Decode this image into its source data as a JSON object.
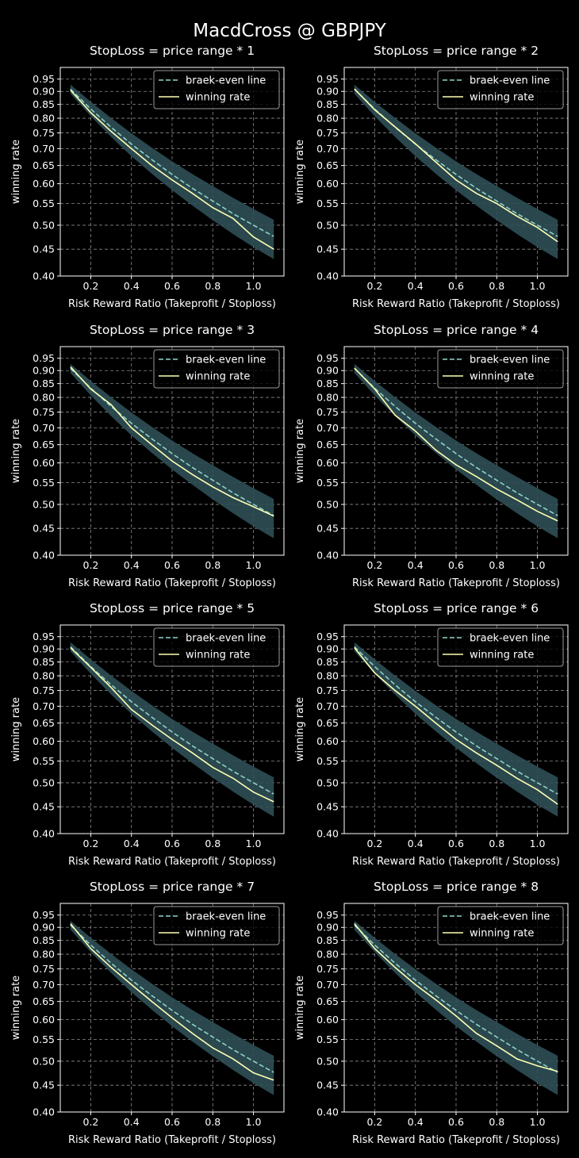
{
  "suptitle": "MacdCross @ GBPJPY",
  "colors": {
    "background": "#000000",
    "break_even": "#8dd3c7",
    "winning": "#feffb3",
    "band": "#2f4f56",
    "grid": "#8a8a8a",
    "text": "#ffffff"
  },
  "chart_data": [
    {
      "type": "line",
      "title": "StopLoss = price range * 1",
      "xlabel": "Risk Reward Ratio (Takeprofit / Stoploss)",
      "ylabel": "winning rate",
      "xlim": [
        0.05,
        1.15
      ],
      "ylim": [
        0.4,
        1.0
      ],
      "yscale": "log",
      "grid": true,
      "legend": "upper right",
      "xticks": [
        0.2,
        0.4,
        0.6,
        0.8,
        1.0
      ],
      "xtick_labels": [
        "0.2",
        "0.4",
        "0.6",
        "0.8",
        "1.0"
      ],
      "yticks": [
        0.4,
        0.45,
        0.5,
        0.55,
        0.6,
        0.65,
        0.7,
        0.75,
        0.8,
        0.85,
        0.9,
        0.95
      ],
      "ytick_labels": [
        "0.40",
        "0.45",
        "0.50",
        "0.55",
        "0.60",
        "0.65",
        "0.70",
        "0.75",
        "0.80",
        "0.85",
        "0.90",
        "0.95"
      ],
      "x": [
        0.1,
        0.2,
        0.3,
        0.4,
        0.5,
        0.6,
        0.7,
        0.8,
        0.9,
        1.0,
        1.1
      ],
      "band": {
        "lower": [
          0.891,
          0.807,
          0.737,
          0.677,
          0.627,
          0.583,
          0.545,
          0.511,
          0.481,
          0.454,
          0.431
        ],
        "upper": [
          0.927,
          0.86,
          0.801,
          0.749,
          0.703,
          0.662,
          0.626,
          0.594,
          0.564,
          0.537,
          0.512
        ]
      },
      "series": [
        {
          "name": "braek-even line",
          "style": "dashed",
          "values": [
            0.909,
            0.833,
            0.769,
            0.714,
            0.667,
            0.625,
            0.588,
            0.556,
            0.526,
            0.5,
            0.476
          ]
        },
        {
          "name": "winning rate",
          "style": "solid",
          "values": [
            0.905,
            0.82,
            0.755,
            0.7,
            0.65,
            0.61,
            0.575,
            0.54,
            0.515,
            0.475,
            0.45
          ]
        }
      ]
    },
    {
      "type": "line",
      "title": "StopLoss = price range * 2",
      "xlabel": "Risk Reward Ratio (Takeprofit / Stoploss)",
      "ylabel": "winning rate",
      "xlim": [
        0.05,
        1.15
      ],
      "ylim": [
        0.4,
        1.0
      ],
      "yscale": "log",
      "grid": true,
      "legend": "upper right",
      "xticks": [
        0.2,
        0.4,
        0.6,
        0.8,
        1.0
      ],
      "xtick_labels": [
        "0.2",
        "0.4",
        "0.6",
        "0.8",
        "1.0"
      ],
      "yticks": [
        0.4,
        0.45,
        0.5,
        0.55,
        0.6,
        0.65,
        0.7,
        0.75,
        0.8,
        0.85,
        0.9,
        0.95
      ],
      "ytick_labels": [
        "0.40",
        "0.45",
        "0.50",
        "0.55",
        "0.60",
        "0.65",
        "0.70",
        "0.75",
        "0.80",
        "0.85",
        "0.90",
        "0.95"
      ],
      "x": [
        0.1,
        0.2,
        0.3,
        0.4,
        0.5,
        0.6,
        0.7,
        0.8,
        0.9,
        1.0,
        1.1
      ],
      "band": {
        "lower": [
          0.891,
          0.807,
          0.737,
          0.677,
          0.627,
          0.583,
          0.545,
          0.511,
          0.481,
          0.454,
          0.431
        ],
        "upper": [
          0.927,
          0.86,
          0.801,
          0.749,
          0.703,
          0.662,
          0.626,
          0.594,
          0.564,
          0.537,
          0.512
        ]
      },
      "series": [
        {
          "name": "braek-even line",
          "style": "dashed",
          "values": [
            0.909,
            0.833,
            0.769,
            0.714,
            0.667,
            0.625,
            0.588,
            0.556,
            0.526,
            0.5,
            0.476
          ]
        },
        {
          "name": "winning rate",
          "style": "solid",
          "values": [
            0.91,
            0.83,
            0.77,
            0.715,
            0.66,
            0.61,
            0.575,
            0.55,
            0.52,
            0.495,
            0.465
          ]
        }
      ]
    },
    {
      "type": "line",
      "title": "StopLoss = price range * 3",
      "xlabel": "Risk Reward Ratio (Takeprofit / Stoploss)",
      "ylabel": "winning rate",
      "xlim": [
        0.05,
        1.15
      ],
      "ylim": [
        0.4,
        1.0
      ],
      "yscale": "log",
      "grid": true,
      "legend": "upper right",
      "xticks": [
        0.2,
        0.4,
        0.6,
        0.8,
        1.0
      ],
      "xtick_labels": [
        "0.2",
        "0.4",
        "0.6",
        "0.8",
        "1.0"
      ],
      "yticks": [
        0.4,
        0.45,
        0.5,
        0.55,
        0.6,
        0.65,
        0.7,
        0.75,
        0.8,
        0.85,
        0.9,
        0.95
      ],
      "ytick_labels": [
        "0.40",
        "0.45",
        "0.50",
        "0.55",
        "0.60",
        "0.65",
        "0.70",
        "0.75",
        "0.80",
        "0.85",
        "0.90",
        "0.95"
      ],
      "x": [
        0.1,
        0.2,
        0.3,
        0.4,
        0.5,
        0.6,
        0.7,
        0.8,
        0.9,
        1.0,
        1.1
      ],
      "band": {
        "lower": [
          0.891,
          0.807,
          0.737,
          0.677,
          0.627,
          0.583,
          0.545,
          0.511,
          0.481,
          0.454,
          0.431
        ],
        "upper": [
          0.927,
          0.86,
          0.801,
          0.749,
          0.703,
          0.662,
          0.626,
          0.594,
          0.564,
          0.537,
          0.512
        ]
      },
      "series": [
        {
          "name": "braek-even line",
          "style": "dashed",
          "values": [
            0.909,
            0.833,
            0.769,
            0.714,
            0.667,
            0.625,
            0.588,
            0.556,
            0.526,
            0.5,
            0.476
          ]
        },
        {
          "name": "winning rate",
          "style": "solid",
          "values": [
            0.915,
            0.83,
            0.775,
            0.7,
            0.65,
            0.605,
            0.57,
            0.54,
            0.515,
            0.495,
            0.475
          ]
        }
      ]
    },
    {
      "type": "line",
      "title": "StopLoss = price range * 4",
      "xlabel": "Risk Reward Ratio (Takeprofit / Stoploss)",
      "ylabel": "winning rate",
      "xlim": [
        0.05,
        1.15
      ],
      "ylim": [
        0.4,
        1.0
      ],
      "yscale": "log",
      "grid": true,
      "legend": "upper right",
      "xticks": [
        0.2,
        0.4,
        0.6,
        0.8,
        1.0
      ],
      "xtick_labels": [
        "0.2",
        "0.4",
        "0.6",
        "0.8",
        "1.0"
      ],
      "yticks": [
        0.4,
        0.45,
        0.5,
        0.55,
        0.6,
        0.65,
        0.7,
        0.75,
        0.8,
        0.85,
        0.9,
        0.95
      ],
      "ytick_labels": [
        "0.40",
        "0.45",
        "0.50",
        "0.55",
        "0.60",
        "0.65",
        "0.70",
        "0.75",
        "0.80",
        "0.85",
        "0.90",
        "0.95"
      ],
      "x": [
        0.1,
        0.2,
        0.3,
        0.4,
        0.5,
        0.6,
        0.7,
        0.8,
        0.9,
        1.0,
        1.1
      ],
      "band": {
        "lower": [
          0.891,
          0.807,
          0.737,
          0.677,
          0.627,
          0.583,
          0.545,
          0.511,
          0.481,
          0.454,
          0.431
        ],
        "upper": [
          0.927,
          0.86,
          0.801,
          0.749,
          0.703,
          0.662,
          0.626,
          0.594,
          0.564,
          0.537,
          0.512
        ]
      },
      "series": [
        {
          "name": "braek-even line",
          "style": "dashed",
          "values": [
            0.909,
            0.833,
            0.769,
            0.714,
            0.667,
            0.625,
            0.588,
            0.556,
            0.526,
            0.5,
            0.476
          ]
        },
        {
          "name": "winning rate",
          "style": "solid",
          "values": [
            0.91,
            0.83,
            0.74,
            0.69,
            0.635,
            0.595,
            0.565,
            0.535,
            0.51,
            0.485,
            0.465
          ]
        }
      ]
    },
    {
      "type": "line",
      "title": "StopLoss = price range * 5",
      "xlabel": "Risk Reward Ratio (Takeprofit / Stoploss)",
      "ylabel": "winning rate",
      "xlim": [
        0.05,
        1.15
      ],
      "ylim": [
        0.4,
        1.0
      ],
      "yscale": "log",
      "grid": true,
      "legend": "upper right",
      "xticks": [
        0.2,
        0.4,
        0.6,
        0.8,
        1.0
      ],
      "xtick_labels": [
        "0.2",
        "0.4",
        "0.6",
        "0.8",
        "1.0"
      ],
      "yticks": [
        0.4,
        0.45,
        0.5,
        0.55,
        0.6,
        0.65,
        0.7,
        0.75,
        0.8,
        0.85,
        0.9,
        0.95
      ],
      "ytick_labels": [
        "0.40",
        "0.45",
        "0.50",
        "0.55",
        "0.60",
        "0.65",
        "0.70",
        "0.75",
        "0.80",
        "0.85",
        "0.90",
        "0.95"
      ],
      "x": [
        0.1,
        0.2,
        0.3,
        0.4,
        0.5,
        0.6,
        0.7,
        0.8,
        0.9,
        1.0,
        1.1
      ],
      "band": {
        "lower": [
          0.891,
          0.807,
          0.737,
          0.677,
          0.627,
          0.583,
          0.545,
          0.511,
          0.481,
          0.454,
          0.431
        ],
        "upper": [
          0.927,
          0.86,
          0.801,
          0.749,
          0.703,
          0.662,
          0.626,
          0.594,
          0.564,
          0.537,
          0.512
        ]
      },
      "series": [
        {
          "name": "braek-even line",
          "style": "dashed",
          "values": [
            0.909,
            0.833,
            0.769,
            0.714,
            0.667,
            0.625,
            0.588,
            0.556,
            0.526,
            0.5,
            0.476
          ]
        },
        {
          "name": "winning rate",
          "style": "solid",
          "values": [
            0.905,
            0.83,
            0.76,
            0.69,
            0.645,
            0.605,
            0.57,
            0.535,
            0.51,
            0.48,
            0.46
          ]
        }
      ]
    },
    {
      "type": "line",
      "title": "StopLoss = price range * 6",
      "xlabel": "Risk Reward Ratio (Takeprofit / Stoploss)",
      "ylabel": "winning rate",
      "xlim": [
        0.05,
        1.15
      ],
      "ylim": [
        0.4,
        1.0
      ],
      "yscale": "log",
      "grid": true,
      "legend": "upper right",
      "xticks": [
        0.2,
        0.4,
        0.6,
        0.8,
        1.0
      ],
      "xtick_labels": [
        "0.2",
        "0.4",
        "0.6",
        "0.8",
        "1.0"
      ],
      "yticks": [
        0.4,
        0.45,
        0.5,
        0.55,
        0.6,
        0.65,
        0.7,
        0.75,
        0.8,
        0.85,
        0.9,
        0.95
      ],
      "ytick_labels": [
        "0.40",
        "0.45",
        "0.50",
        "0.55",
        "0.60",
        "0.65",
        "0.70",
        "0.75",
        "0.80",
        "0.85",
        "0.90",
        "0.95"
      ],
      "x": [
        0.1,
        0.2,
        0.3,
        0.4,
        0.5,
        0.6,
        0.7,
        0.8,
        0.9,
        1.0,
        1.1
      ],
      "band": {
        "lower": [
          0.891,
          0.807,
          0.737,
          0.677,
          0.627,
          0.583,
          0.545,
          0.511,
          0.481,
          0.454,
          0.431
        ],
        "upper": [
          0.927,
          0.86,
          0.801,
          0.749,
          0.703,
          0.662,
          0.626,
          0.594,
          0.564,
          0.537,
          0.512
        ]
      },
      "series": [
        {
          "name": "braek-even line",
          "style": "dashed",
          "values": [
            0.909,
            0.833,
            0.769,
            0.714,
            0.667,
            0.625,
            0.588,
            0.556,
            0.526,
            0.5,
            0.476
          ]
        },
        {
          "name": "winning rate",
          "style": "solid",
          "values": [
            0.905,
            0.81,
            0.75,
            0.7,
            0.65,
            0.605,
            0.57,
            0.54,
            0.51,
            0.485,
            0.455
          ]
        }
      ]
    },
    {
      "type": "line",
      "title": "StopLoss = price range * 7",
      "xlabel": "Risk Reward Ratio (Takeprofit / Stoploss)",
      "ylabel": "winning rate",
      "xlim": [
        0.05,
        1.15
      ],
      "ylim": [
        0.4,
        1.0
      ],
      "yscale": "log",
      "grid": true,
      "legend": "upper right",
      "xticks": [
        0.2,
        0.4,
        0.6,
        0.8,
        1.0
      ],
      "xtick_labels": [
        "0.2",
        "0.4",
        "0.6",
        "0.8",
        "1.0"
      ],
      "yticks": [
        0.4,
        0.45,
        0.5,
        0.55,
        0.6,
        0.65,
        0.7,
        0.75,
        0.8,
        0.85,
        0.9,
        0.95
      ],
      "ytick_labels": [
        "0.40",
        "0.45",
        "0.50",
        "0.55",
        "0.60",
        "0.65",
        "0.70",
        "0.75",
        "0.80",
        "0.85",
        "0.90",
        "0.95"
      ],
      "x": [
        0.1,
        0.2,
        0.3,
        0.4,
        0.5,
        0.6,
        0.7,
        0.8,
        0.9,
        1.0,
        1.1
      ],
      "band": {
        "lower": [
          0.891,
          0.807,
          0.737,
          0.677,
          0.627,
          0.583,
          0.545,
          0.511,
          0.481,
          0.454,
          0.431
        ],
        "upper": [
          0.927,
          0.86,
          0.801,
          0.749,
          0.703,
          0.662,
          0.626,
          0.594,
          0.564,
          0.537,
          0.512
        ]
      },
      "series": [
        {
          "name": "braek-even line",
          "style": "dashed",
          "values": [
            0.909,
            0.833,
            0.769,
            0.714,
            0.667,
            0.625,
            0.588,
            0.556,
            0.526,
            0.5,
            0.476
          ]
        },
        {
          "name": "winning rate",
          "style": "solid",
          "values": [
            0.915,
            0.82,
            0.755,
            0.7,
            0.65,
            0.605,
            0.565,
            0.53,
            0.505,
            0.475,
            0.46
          ]
        }
      ]
    },
    {
      "type": "line",
      "title": "StopLoss = price range * 8",
      "xlabel": "Risk Reward Ratio (Takeprofit / Stoploss)",
      "ylabel": "winning rate",
      "xlim": [
        0.05,
        1.15
      ],
      "ylim": [
        0.4,
        1.0
      ],
      "yscale": "log",
      "grid": true,
      "legend": "upper right",
      "xticks": [
        0.2,
        0.4,
        0.6,
        0.8,
        1.0
      ],
      "xtick_labels": [
        "0.2",
        "0.4",
        "0.6",
        "0.8",
        "1.0"
      ],
      "yticks": [
        0.4,
        0.45,
        0.5,
        0.55,
        0.6,
        0.65,
        0.7,
        0.75,
        0.8,
        0.85,
        0.9,
        0.95
      ],
      "ytick_labels": [
        "0.40",
        "0.45",
        "0.50",
        "0.55",
        "0.60",
        "0.65",
        "0.70",
        "0.75",
        "0.80",
        "0.85",
        "0.90",
        "0.95"
      ],
      "x": [
        0.1,
        0.2,
        0.3,
        0.4,
        0.5,
        0.6,
        0.7,
        0.8,
        0.9,
        1.0,
        1.1
      ],
      "band": {
        "lower": [
          0.891,
          0.807,
          0.737,
          0.677,
          0.627,
          0.583,
          0.545,
          0.511,
          0.481,
          0.454,
          0.431
        ],
        "upper": [
          0.927,
          0.86,
          0.801,
          0.749,
          0.703,
          0.662,
          0.626,
          0.594,
          0.564,
          0.537,
          0.512
        ]
      },
      "series": [
        {
          "name": "braek-even line",
          "style": "dashed",
          "values": [
            0.909,
            0.833,
            0.769,
            0.714,
            0.667,
            0.625,
            0.588,
            0.556,
            0.526,
            0.5,
            0.476
          ]
        },
        {
          "name": "winning rate",
          "style": "solid",
          "values": [
            0.915,
            0.82,
            0.755,
            0.7,
            0.655,
            0.61,
            0.565,
            0.535,
            0.505,
            0.49,
            0.478
          ]
        }
      ]
    }
  ]
}
